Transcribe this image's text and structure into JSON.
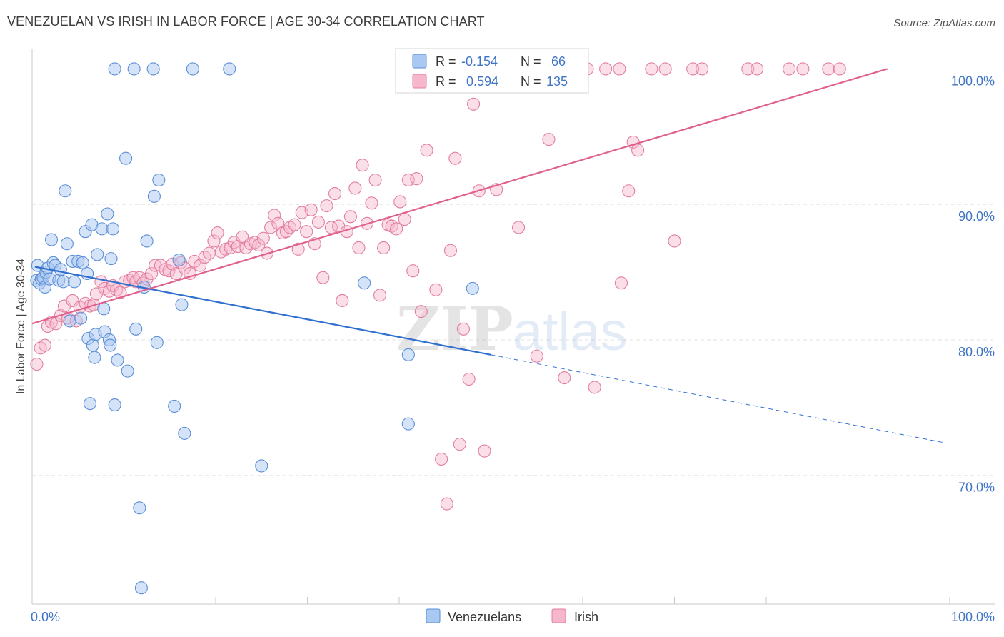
{
  "header": {
    "title": "VENEZUELAN VS IRISH IN LABOR FORCE | AGE 30-34 CORRELATION CHART",
    "source": "Source: ZipAtlas.com"
  },
  "colors": {
    "venezuelans_fill": "#a9c8f2",
    "venezuelans_stroke": "#5b8fd6",
    "venezuelans_line": "#2f6fcf",
    "irish_fill": "#f7b7cb",
    "irish_stroke": "#e27ea0",
    "irish_line": "#e0608e",
    "tick_text": "#3f74c6",
    "grid": "#e3e3e3"
  },
  "legend": {
    "r_label": "R =",
    "n_label": "N =",
    "venezuelans": {
      "r": "-0.154",
      "n": "66"
    },
    "irish": {
      "r": "0.594",
      "n": "135"
    }
  },
  "watermark": {
    "zip": "ZIP",
    "atlas": "atlas"
  },
  "chart_data": {
    "type": "scatter",
    "xlabel": "",
    "ylabel": "In Labor Force | Age 30-34",
    "xlim": [
      0,
      100
    ],
    "ylim": [
      60.5,
      101.5
    ],
    "x_tick_labels": [
      "0.0%",
      "100.0%"
    ],
    "y_ticks": [
      {
        "value": 70,
        "label": "70.0%"
      },
      {
        "value": 80,
        "label": "80.0%"
      },
      {
        "value": 90,
        "label": "90.0%"
      },
      {
        "value": 100,
        "label": "100.0%"
      }
    ],
    "grid": true,
    "legend_position": "top-center",
    "series": [
      {
        "name": "Venezuelans",
        "r": -0.154,
        "n": 66,
        "trend": {
          "x0": 0.3,
          "y0": 85.4,
          "x1": 50,
          "y1": 78.9,
          "dashed_to_x": 99.5,
          "dashed_to_y": 72.4
        },
        "points": [
          [
            0.5,
            84.4
          ],
          [
            0.6,
            85.5
          ],
          [
            0.8,
            84.2
          ],
          [
            1.0,
            84.5
          ],
          [
            1.2,
            84.6
          ],
          [
            1.4,
            83.9
          ],
          [
            1.5,
            85.0
          ],
          [
            1.7,
            85.3
          ],
          [
            1.9,
            84.5
          ],
          [
            2.1,
            87.4
          ],
          [
            2.3,
            85.7
          ],
          [
            2.5,
            85.5
          ],
          [
            2.9,
            84.4
          ],
          [
            3.1,
            85.2
          ],
          [
            3.4,
            84.3
          ],
          [
            3.6,
            91.0
          ],
          [
            3.8,
            87.1
          ],
          [
            4.1,
            81.4
          ],
          [
            4.4,
            85.8
          ],
          [
            4.6,
            84.3
          ],
          [
            5.0,
            85.8
          ],
          [
            5.3,
            81.6
          ],
          [
            5.5,
            85.7
          ],
          [
            5.8,
            88.0
          ],
          [
            6.0,
            84.9
          ],
          [
            6.1,
            80.1
          ],
          [
            6.3,
            75.3
          ],
          [
            6.5,
            88.5
          ],
          [
            6.6,
            79.6
          ],
          [
            6.8,
            78.7
          ],
          [
            6.9,
            80.4
          ],
          [
            7.1,
            86.3
          ],
          [
            7.6,
            88.2
          ],
          [
            7.8,
            82.3
          ],
          [
            7.9,
            80.6
          ],
          [
            8.2,
            89.3
          ],
          [
            8.4,
            80.0
          ],
          [
            8.5,
            79.6
          ],
          [
            8.6,
            86.0
          ],
          [
            8.8,
            88.2
          ],
          [
            9.0,
            100.0
          ],
          [
            9.0,
            75.2
          ],
          [
            9.3,
            78.5
          ],
          [
            10.2,
            93.4
          ],
          [
            10.4,
            77.7
          ],
          [
            11.1,
            100.0
          ],
          [
            11.3,
            80.8
          ],
          [
            11.7,
            67.6
          ],
          [
            11.9,
            61.7
          ],
          [
            12.2,
            83.9
          ],
          [
            12.5,
            87.3
          ],
          [
            13.2,
            100.0
          ],
          [
            13.3,
            90.6
          ],
          [
            13.6,
            79.8
          ],
          [
            13.8,
            91.8
          ],
          [
            15.5,
            75.1
          ],
          [
            16.0,
            85.9
          ],
          [
            16.3,
            82.6
          ],
          [
            16.6,
            73.1
          ],
          [
            17.5,
            100.0
          ],
          [
            21.5,
            100.0
          ],
          [
            25.0,
            70.7
          ],
          [
            36.2,
            84.2
          ],
          [
            41.0,
            73.8
          ],
          [
            41.0,
            78.9
          ],
          [
            48.0,
            83.8
          ]
        ]
      },
      {
        "name": "Irish",
        "r": 0.594,
        "n": 135,
        "trend": {
          "x0": 0.0,
          "y0": 81.2,
          "x1": 93.2,
          "y1": 100.0
        },
        "points": [
          [
            0.5,
            78.2
          ],
          [
            0.9,
            79.4
          ],
          [
            1.4,
            79.6
          ],
          [
            1.7,
            81.0
          ],
          [
            2.1,
            81.3
          ],
          [
            2.6,
            81.2
          ],
          [
            3.1,
            81.8
          ],
          [
            3.5,
            82.5
          ],
          [
            3.9,
            81.6
          ],
          [
            4.4,
            82.9
          ],
          [
            4.8,
            81.4
          ],
          [
            5.2,
            82.4
          ],
          [
            5.8,
            82.7
          ],
          [
            6.3,
            82.5
          ],
          [
            6.7,
            82.6
          ],
          [
            7.0,
            83.4
          ],
          [
            7.5,
            84.3
          ],
          [
            7.9,
            83.8
          ],
          [
            8.4,
            83.6
          ],
          [
            8.8,
            84.0
          ],
          [
            9.2,
            83.7
          ],
          [
            9.6,
            83.5
          ],
          [
            10.1,
            84.3
          ],
          [
            10.6,
            84.4
          ],
          [
            11.0,
            84.6
          ],
          [
            11.3,
            84.3
          ],
          [
            11.7,
            84.6
          ],
          [
            12.1,
            84.2
          ],
          [
            12.5,
            84.5
          ],
          [
            13.0,
            84.9
          ],
          [
            13.4,
            85.5
          ],
          [
            14.0,
            85.5
          ],
          [
            14.5,
            85.2
          ],
          [
            14.9,
            85.1
          ],
          [
            15.3,
            85.6
          ],
          [
            15.7,
            84.9
          ],
          [
            16.2,
            85.7
          ],
          [
            16.6,
            85.3
          ],
          [
            17.2,
            84.9
          ],
          [
            17.7,
            85.8
          ],
          [
            18.3,
            85.5
          ],
          [
            18.8,
            86.1
          ],
          [
            19.3,
            86.4
          ],
          [
            19.8,
            87.3
          ],
          [
            20.2,
            87.9
          ],
          [
            20.6,
            86.5
          ],
          [
            21.1,
            86.7
          ],
          [
            21.6,
            86.8
          ],
          [
            22.0,
            87.2
          ],
          [
            22.4,
            86.9
          ],
          [
            22.9,
            87.6
          ],
          [
            23.3,
            86.8
          ],
          [
            23.8,
            87.1
          ],
          [
            24.3,
            87.2
          ],
          [
            24.7,
            87.0
          ],
          [
            25.2,
            87.5
          ],
          [
            25.6,
            86.4
          ],
          [
            26.0,
            88.3
          ],
          [
            26.4,
            89.2
          ],
          [
            26.8,
            88.6
          ],
          [
            27.3,
            87.9
          ],
          [
            27.7,
            88.0
          ],
          [
            28.1,
            88.3
          ],
          [
            28.6,
            88.5
          ],
          [
            29.0,
            86.7
          ],
          [
            29.4,
            89.4
          ],
          [
            29.9,
            88.0
          ],
          [
            30.4,
            89.6
          ],
          [
            30.8,
            87.1
          ],
          [
            31.2,
            88.7
          ],
          [
            31.7,
            84.6
          ],
          [
            32.1,
            89.9
          ],
          [
            32.6,
            88.3
          ],
          [
            33.0,
            90.8
          ],
          [
            33.4,
            88.4
          ],
          [
            33.8,
            82.9
          ],
          [
            34.3,
            88.0
          ],
          [
            34.7,
            89.1
          ],
          [
            35.2,
            91.2
          ],
          [
            35.6,
            86.8
          ],
          [
            36.0,
            92.9
          ],
          [
            36.5,
            88.6
          ],
          [
            37.0,
            90.1
          ],
          [
            37.4,
            91.8
          ],
          [
            37.9,
            83.3
          ],
          [
            38.3,
            86.8
          ],
          [
            38.8,
            88.5
          ],
          [
            39.2,
            88.4
          ],
          [
            39.7,
            88.2
          ],
          [
            40.1,
            90.2
          ],
          [
            40.6,
            88.9
          ],
          [
            41.0,
            91.8
          ],
          [
            41.5,
            85.1
          ],
          [
            41.9,
            91.9
          ],
          [
            42.4,
            82.1
          ],
          [
            43.0,
            94.0
          ],
          [
            43.5,
            100.0
          ],
          [
            44.0,
            83.7
          ],
          [
            44.6,
            71.2
          ],
          [
            45.2,
            67.9
          ],
          [
            45.6,
            86.6
          ],
          [
            46.1,
            93.4
          ],
          [
            46.6,
            72.3
          ],
          [
            47.0,
            80.8
          ],
          [
            47.6,
            77.1
          ],
          [
            48.1,
            97.4
          ],
          [
            48.7,
            91.0
          ],
          [
            49.3,
            71.8
          ],
          [
            50.0,
            100.0
          ],
          [
            50.6,
            91.1
          ],
          [
            51.3,
            100.0
          ],
          [
            52.0,
            100.0
          ],
          [
            53.0,
            88.3
          ],
          [
            54.0,
            100.0
          ],
          [
            55.0,
            78.8
          ],
          [
            55.5,
            100.0
          ],
          [
            56.3,
            94.8
          ],
          [
            57.0,
            100.0
          ],
          [
            58.0,
            77.2
          ],
          [
            59.0,
            100.0
          ],
          [
            60.5,
            100.0
          ],
          [
            61.3,
            76.5
          ],
          [
            62.5,
            100.0
          ],
          [
            64.0,
            100.0
          ],
          [
            64.2,
            84.2
          ],
          [
            65.0,
            91.0
          ],
          [
            65.5,
            94.6
          ],
          [
            66.0,
            94.0
          ],
          [
            67.5,
            100.0
          ],
          [
            69.0,
            100.0
          ],
          [
            70.0,
            87.3
          ],
          [
            72.0,
            100.0
          ],
          [
            73.0,
            100.0
          ],
          [
            78.0,
            100.0
          ],
          [
            79.0,
            100.0
          ],
          [
            82.5,
            100.0
          ],
          [
            84.0,
            100.0
          ],
          [
            86.8,
            100.0
          ],
          [
            88.0,
            100.0
          ]
        ]
      }
    ]
  },
  "bottom_legend": {
    "items": [
      {
        "label": "Venezuelans"
      },
      {
        "label": "Irish"
      }
    ]
  }
}
